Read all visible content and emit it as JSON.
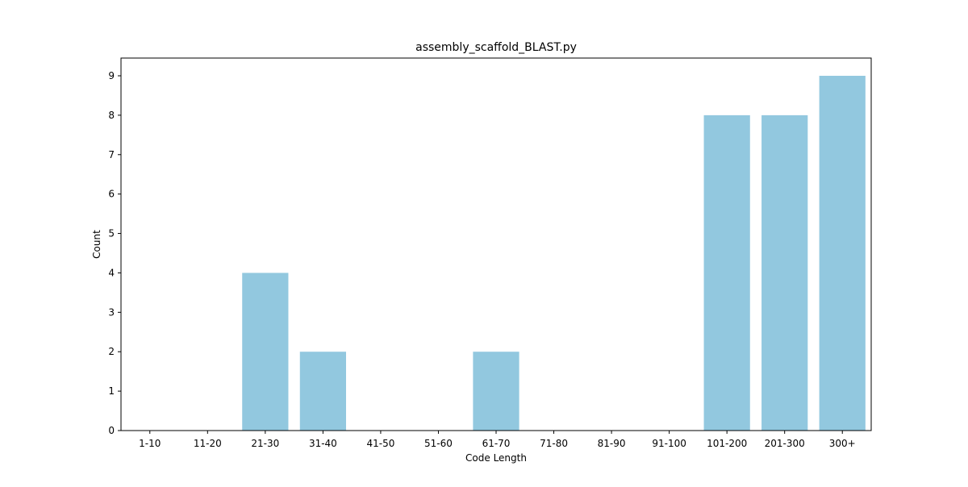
{
  "chart_data": {
    "type": "bar",
    "title": "assembly_scaffold_BLAST.py",
    "xlabel": "Code Length",
    "ylabel": "Count",
    "categories": [
      "1-10",
      "11-20",
      "21-30",
      "31-40",
      "41-50",
      "51-60",
      "61-70",
      "71-80",
      "81-90",
      "91-100",
      "101-200",
      "201-300",
      "300+"
    ],
    "values": [
      0,
      0,
      4,
      2,
      0,
      0,
      2,
      0,
      0,
      0,
      8,
      8,
      9
    ],
    "ylim": [
      0,
      9.45
    ],
    "yticks": [
      0,
      1,
      2,
      3,
      4,
      5,
      6,
      7,
      8,
      9
    ],
    "bar_color": "#92c8df",
    "grid": false,
    "legend": "none"
  }
}
